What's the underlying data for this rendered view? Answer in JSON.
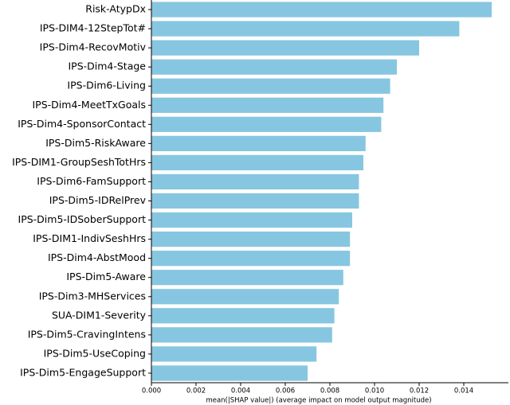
{
  "chart_data": {
    "type": "barh",
    "categories": [
      "Risk-AtypDx",
      "IPS-DIM4-12StepTot#",
      "IPS-Dim4-RecovMotiv",
      "IPS-Dim4-Stage",
      "IPS-Dim6-Living",
      "IPS-Dim4-MeetTxGoals",
      "IPS-Dim4-SponsorContact",
      "IPS-Dim5-RiskAware",
      "IPS-DIM1-GroupSeshTotHrs",
      "IPS-Dim6-FamSupport",
      "IPS-Dim5-IDRelPrev",
      "IPS-Dim5-IDSoberSupport",
      "IPS-DIM1-IndivSeshHrs",
      "IPS-Dim4-AbstMood",
      "IPS-Dim5-Aware",
      "IPS-Dim3-MHServices",
      "SUA-DIM1-Severity",
      "IPS-Dim5-CravingIntens",
      "IPS-Dim5-UseCoping",
      "IPS-Dim5-EngageSupport"
    ],
    "values": [
      0.01525,
      0.0138,
      0.012,
      0.011,
      0.0107,
      0.0104,
      0.0103,
      0.0096,
      0.0095,
      0.0093,
      0.0093,
      0.009,
      0.0089,
      0.0089,
      0.0086,
      0.0084,
      0.0082,
      0.0081,
      0.0074,
      0.007
    ],
    "color": "#87c6e0",
    "xlabel": "mean(|SHAP value|) (average impact on model output magnitude)",
    "xlim": [
      0,
      0.016
    ],
    "xticks": [
      {
        "value": 0,
        "label": "0.000"
      },
      {
        "value": 0.002,
        "label": "0.002"
      },
      {
        "value": 0.004,
        "label": "0.004"
      },
      {
        "value": 0.006,
        "label": "0.006"
      },
      {
        "value": 0.008,
        "label": "0.008"
      },
      {
        "value": 0.01,
        "label": "0.010"
      },
      {
        "value": 0.012,
        "label": "0.012"
      },
      {
        "value": 0.014,
        "label": "0.014"
      }
    ]
  }
}
